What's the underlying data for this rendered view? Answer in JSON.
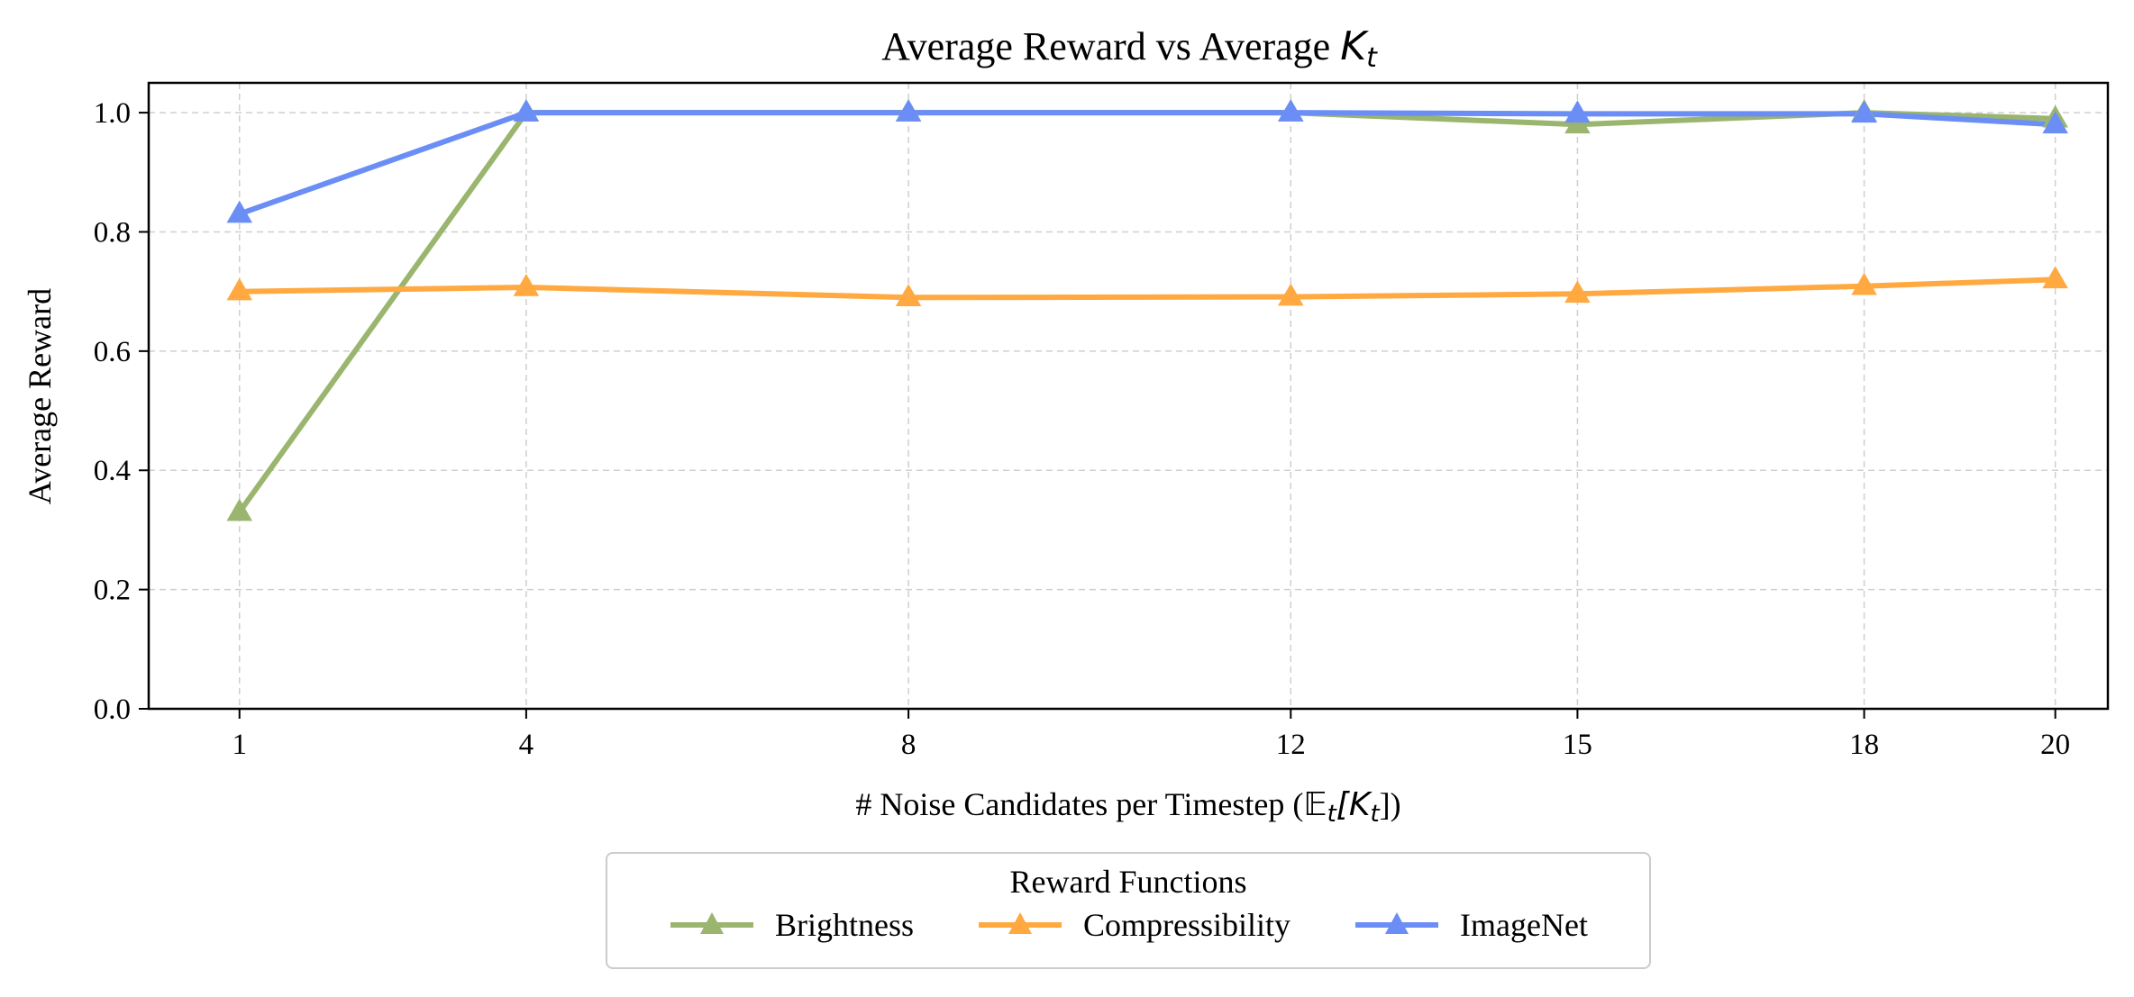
{
  "chart_data": {
    "type": "line",
    "title": "Average Reward vs Average ",
    "title_math": "K",
    "title_math_sub": "t",
    "xlabel_prefix": "# Noise Candidates per Timestep (",
    "xlabel_math": "𝔼",
    "xlabel_math_sub": "t",
    "xlabel_bracket": "[K",
    "xlabel_bracket_sub": "t",
    "xlabel_suffix": "])",
    "ylabel": "Average Reward",
    "x": [
      1,
      4,
      8,
      12,
      15,
      18,
      20
    ],
    "xticks": [
      "1",
      "4",
      "8",
      "12",
      "15",
      "18",
      "20"
    ],
    "xlim": [
      0.05,
      20.55
    ],
    "ylim": [
      0.0,
      1.05
    ],
    "yticks": [
      "0.0",
      "0.2",
      "0.4",
      "0.6",
      "0.8",
      "1.0"
    ],
    "ytick_values": [
      0.0,
      0.2,
      0.4,
      0.6,
      0.8,
      1.0
    ],
    "grid": true,
    "series": [
      {
        "name": "Brightness",
        "color": "#9ab56e",
        "marker": "triangle-up",
        "values": [
          0.33,
          1.0,
          1.0,
          1.0,
          0.98,
          1.0,
          0.99
        ]
      },
      {
        "name": "Compressibility",
        "color": "#ffa940",
        "marker": "triangle-up",
        "values": [
          0.7,
          0.707,
          0.69,
          0.691,
          0.696,
          0.709,
          0.72
        ]
      },
      {
        "name": "ImageNet",
        "color": "#6a8ef5",
        "marker": "triangle-up",
        "values": [
          0.83,
          1.0,
          1.0,
          1.0,
          0.998,
          0.998,
          0.98
        ]
      }
    ],
    "legend": {
      "title": "Reward Functions",
      "placement": "bottom-center"
    }
  }
}
